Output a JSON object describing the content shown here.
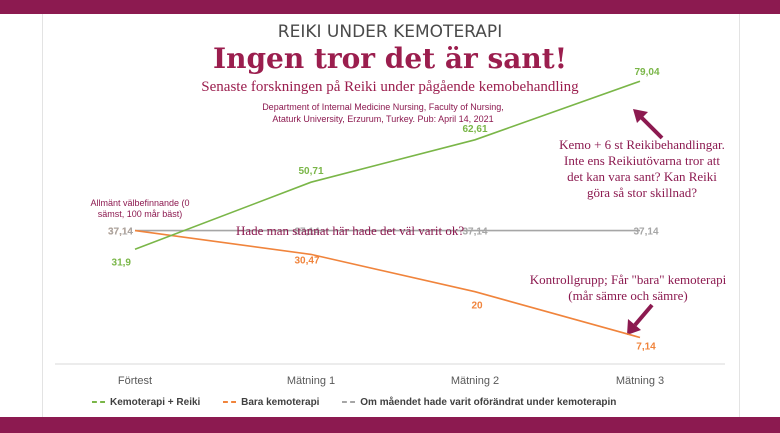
{
  "header": {
    "kicker": "REIKI UNDER KEMOTERAPI",
    "title": "Ingen tror det är sant!",
    "subtitle": "Senaste forskningen på Reiki under pågående kemobehandling",
    "source": "Department of Internal Medicine Nursing, Faculty of Nursing, Ataturk University, Erzurum, Turkey. Pub: April 14, 2021"
  },
  "annotations": {
    "ylabel": "Allmänt välbefinnande (0 sämst, 100 mår bäst)",
    "top_right": "Kemo + 6 st Reikibehandlingar. Inte ens Reikiutövarna tror att det kan vara sant? Kan Reiki göra så stor skillnad?",
    "middle": "Hade man stannat här hade det väl varit ok?",
    "bottom_right": "Kontrollgrupp; Får \"bara\" kemoterapi (mår sämre och sämre)"
  },
  "colors": {
    "brand": "#8c1a50",
    "accent": "#9b1e4e",
    "reiki": "#7ab648",
    "kemo": "#f0843c",
    "unchanged": "#a6a6a6"
  },
  "chart_data": {
    "type": "line",
    "categories": [
      "Förtest",
      "Mätning 1",
      "Mätning 2",
      "Mätning 3"
    ],
    "series": [
      {
        "name": "Kemoterapi + Reiki",
        "values": [
          31.9,
          50.71,
          62.61,
          79.04
        ],
        "labels": [
          "31,9",
          "50,71",
          "62,61",
          "79,04"
        ]
      },
      {
        "name": "Bara kemoterapi",
        "values": [
          37.14,
          30.47,
          20,
          7.14
        ],
        "labels": [
          "37,14",
          "30,47",
          "20",
          "7,14"
        ]
      },
      {
        "name": "Om måendet hade varit oförändrat under kemoterapin",
        "values": [
          37.14,
          37.14,
          37.14,
          37.14
        ],
        "labels": [
          "37,14",
          "37,14",
          "37,14",
          "37,14"
        ]
      }
    ],
    "ylim": [
      0,
      85
    ],
    "grid": false,
    "legend": "bottom"
  }
}
